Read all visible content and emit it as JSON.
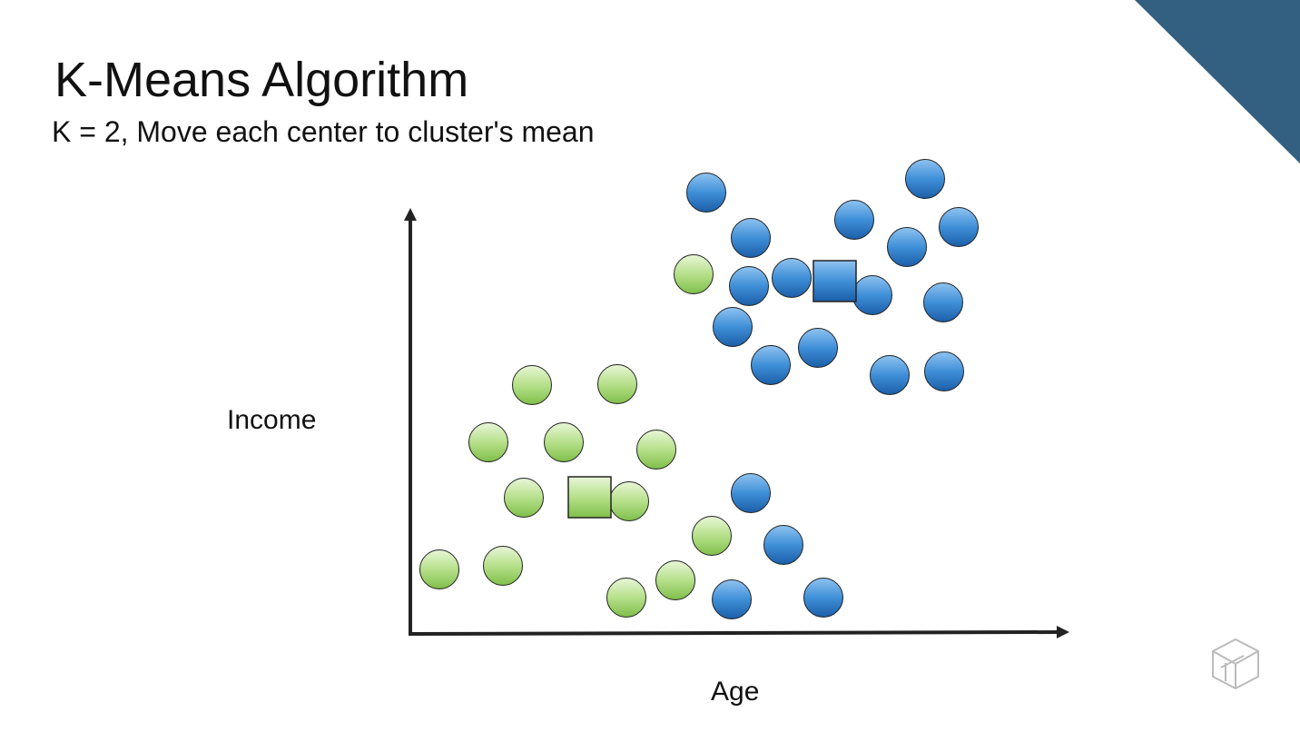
{
  "header": {
    "title": "K-Means Algorithm",
    "subtitle": "K = 2, Move each center to cluster's mean"
  },
  "diagram": {
    "y_axis_label": "Income",
    "x_axis_label": "Age"
  }
}
